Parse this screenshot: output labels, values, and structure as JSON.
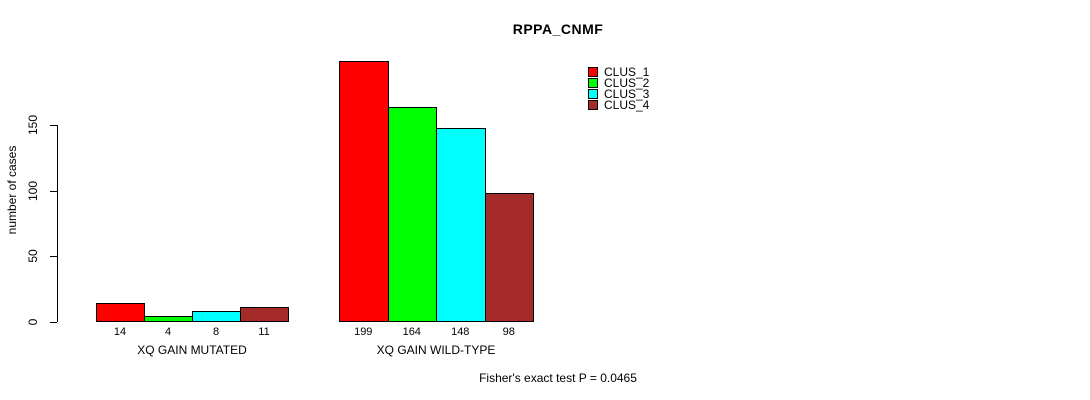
{
  "chart_data": {
    "type": "bar",
    "title": "RPPA_CNMF",
    "ylabel": "number of cases",
    "xlabel": "",
    "categories": [
      "XQ GAIN MUTATED",
      "XQ GAIN WILD-TYPE"
    ],
    "series": [
      {
        "name": "CLUS_1",
        "color": "#ff0000",
        "values": [
          14,
          199
        ]
      },
      {
        "name": "CLUS_2",
        "color": "#00ff00",
        "values": [
          4,
          164
        ]
      },
      {
        "name": "CLUS_3",
        "color": "#00ffff",
        "values": [
          8,
          148
        ]
      },
      {
        "name": "CLUS_4",
        "color": "#a52a2a",
        "values": [
          11,
          98
        ]
      }
    ],
    "yticks": [
      0,
      50,
      100,
      150
    ],
    "ylim": [
      0,
      205
    ],
    "grid": false,
    "bar_value_labels_shown": true,
    "legend_position": "top-right",
    "annotation": "Fisher's exact test P = 0.0465",
    "axis_color": "#000000",
    "background_color": "#ffffff"
  }
}
